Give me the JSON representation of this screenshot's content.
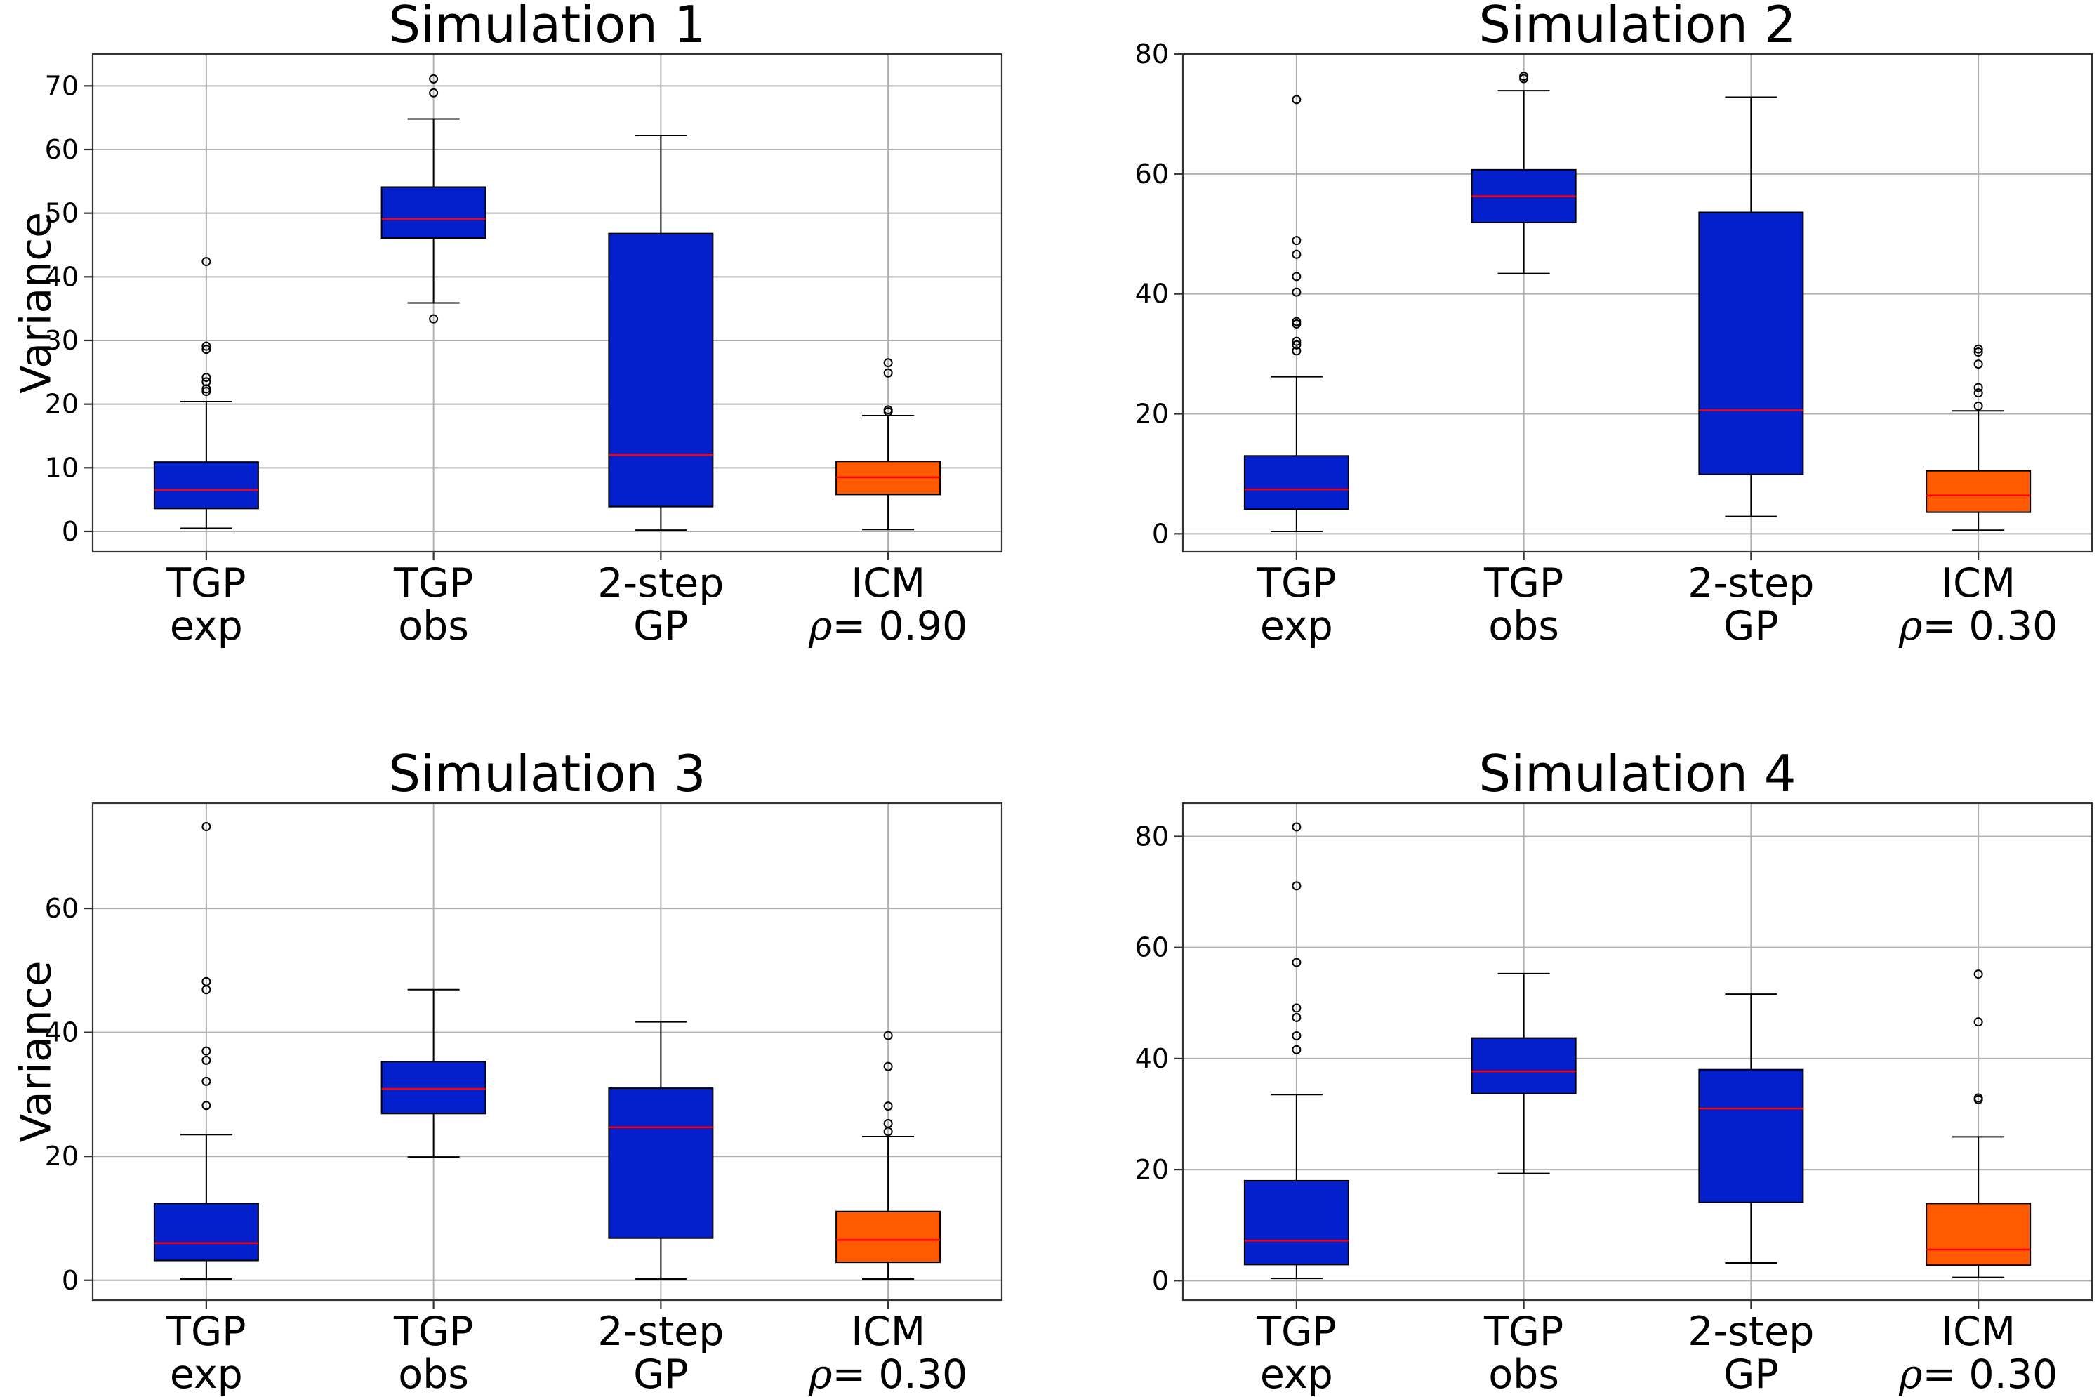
{
  "colors": {
    "default_box": "#0320cc",
    "icm_box": "#ff5a00",
    "median": "#ff0000",
    "grid": "#b0b0b0"
  },
  "chart_data": [
    {
      "type": "box",
      "title": "Simulation 1",
      "ylabel": "Variance",
      "ylim": [
        -3.2,
        75.0
      ],
      "yticks": [
        0,
        10,
        20,
        30,
        40,
        50,
        60,
        70
      ],
      "grid": true,
      "categories": [
        [
          "TGP",
          "exp"
        ],
        [
          "TGP",
          "obs"
        ],
        [
          "2-step",
          "GP"
        ],
        [
          "ICM",
          "ρ= 0.90"
        ]
      ],
      "box_colors": [
        "#0320cc",
        "#0320cc",
        "#0320cc",
        "#ff5a00"
      ],
      "series": [
        {
          "whisker_low": 0.5,
          "q1": 3.6,
          "median": 6.5,
          "q3": 10.9,
          "whisker_high": 20.4,
          "outliers": [
            22.0,
            22.4,
            23.5,
            24.2,
            28.6,
            29.1,
            42.4
          ]
        },
        {
          "whisker_low": 35.9,
          "q1": 46.1,
          "median": 49.1,
          "q3": 54.1,
          "whisker_high": 64.8,
          "outliers": [
            33.4,
            68.9,
            71.1
          ]
        },
        {
          "whisker_low": 0.2,
          "q1": 3.9,
          "median": 12.0,
          "q3": 46.8,
          "whisker_high": 62.2,
          "outliers": []
        },
        {
          "whisker_low": 0.3,
          "q1": 5.8,
          "median": 8.5,
          "q3": 11.0,
          "whisker_high": 18.2,
          "outliers": [
            18.8,
            19.1,
            24.9,
            26.5
          ]
        }
      ]
    },
    {
      "type": "box",
      "title": "Simulation 2",
      "ylabel": "",
      "ylim": [
        -3.0,
        80.0
      ],
      "yticks": [
        0,
        20,
        40,
        60,
        80
      ],
      "grid": true,
      "categories": [
        [
          "TGP",
          "exp"
        ],
        [
          "TGP",
          "obs"
        ],
        [
          "2-step",
          "GP"
        ],
        [
          "ICM",
          "ρ= 0.30"
        ]
      ],
      "box_colors": [
        "#0320cc",
        "#0320cc",
        "#0320cc",
        "#ff5a00"
      ],
      "series": [
        {
          "whisker_low": 0.4,
          "q1": 4.1,
          "median": 7.4,
          "q3": 13.0,
          "whisker_high": 26.2,
          "outliers": [
            30.5,
            31.5,
            32.1,
            35.0,
            35.4,
            40.3,
            42.9,
            46.6,
            48.9,
            72.4
          ]
        },
        {
          "whisker_low": 43.4,
          "q1": 51.9,
          "median": 56.3,
          "q3": 60.7,
          "whisker_high": 73.9,
          "outliers": [
            75.9,
            76.3
          ]
        },
        {
          "whisker_low": 2.9,
          "q1": 9.9,
          "median": 20.6,
          "q3": 53.6,
          "whisker_high": 72.8,
          "outliers": []
        },
        {
          "whisker_low": 0.6,
          "q1": 3.6,
          "median": 6.4,
          "q3": 10.5,
          "whisker_high": 20.5,
          "outliers": [
            21.3,
            23.5,
            24.4,
            28.3,
            30.3,
            30.8
          ]
        }
      ]
    },
    {
      "type": "box",
      "title": "Simulation 3",
      "ylabel": "Variance",
      "ylim": [
        -3.2,
        77.0
      ],
      "yticks": [
        0,
        20,
        40,
        60
      ],
      "grid": true,
      "categories": [
        [
          "TGP",
          "exp"
        ],
        [
          "TGP",
          "obs"
        ],
        [
          "2-step",
          "GP"
        ],
        [
          "ICM",
          "ρ= 0.30"
        ]
      ],
      "box_colors": [
        "#0320cc",
        "#0320cc",
        "#0320cc",
        "#ff5a00"
      ],
      "series": [
        {
          "whisker_low": 0.2,
          "q1": 3.2,
          "median": 6.0,
          "q3": 12.4,
          "whisker_high": 23.5,
          "outliers": [
            28.2,
            32.1,
            35.5,
            37.0,
            46.9,
            48.2,
            73.2
          ]
        },
        {
          "whisker_low": 19.9,
          "q1": 26.9,
          "median": 30.9,
          "q3": 35.3,
          "whisker_high": 46.9,
          "outliers": []
        },
        {
          "whisker_low": 0.2,
          "q1": 6.8,
          "median": 24.7,
          "q3": 31.0,
          "whisker_high": 41.7,
          "outliers": []
        },
        {
          "whisker_low": 0.2,
          "q1": 2.9,
          "median": 6.5,
          "q3": 11.1,
          "whisker_high": 23.2,
          "outliers": [
            24.0,
            25.3,
            28.1,
            34.5,
            39.5
          ]
        }
      ]
    },
    {
      "type": "box",
      "title": "Simulation 4",
      "ylabel": "",
      "ylim": [
        -3.5,
        86.0
      ],
      "yticks": [
        0,
        20,
        40,
        60,
        80
      ],
      "grid": true,
      "categories": [
        [
          "TGP",
          "exp"
        ],
        [
          "TGP",
          "obs"
        ],
        [
          "2-step",
          "GP"
        ],
        [
          "ICM",
          "ρ= 0.30"
        ]
      ],
      "box_colors": [
        "#0320cc",
        "#0320cc",
        "#0320cc",
        "#ff5a00"
      ],
      "series": [
        {
          "whisker_low": 0.4,
          "q1": 2.9,
          "median": 7.2,
          "q3": 18.0,
          "whisker_high": 33.5,
          "outliers": [
            41.6,
            44.1,
            47.4,
            49.1,
            57.3,
            71.1,
            81.7
          ]
        },
        {
          "whisker_low": 19.3,
          "q1": 33.7,
          "median": 37.7,
          "q3": 43.7,
          "whisker_high": 55.3,
          "outliers": []
        },
        {
          "whisker_low": 3.2,
          "q1": 14.1,
          "median": 31.0,
          "q3": 38.0,
          "whisker_high": 51.6,
          "outliers": []
        },
        {
          "whisker_low": 0.6,
          "q1": 2.8,
          "median": 5.6,
          "q3": 13.9,
          "whisker_high": 25.9,
          "outliers": [
            32.6,
            32.9,
            46.6,
            55.2
          ]
        }
      ]
    }
  ]
}
